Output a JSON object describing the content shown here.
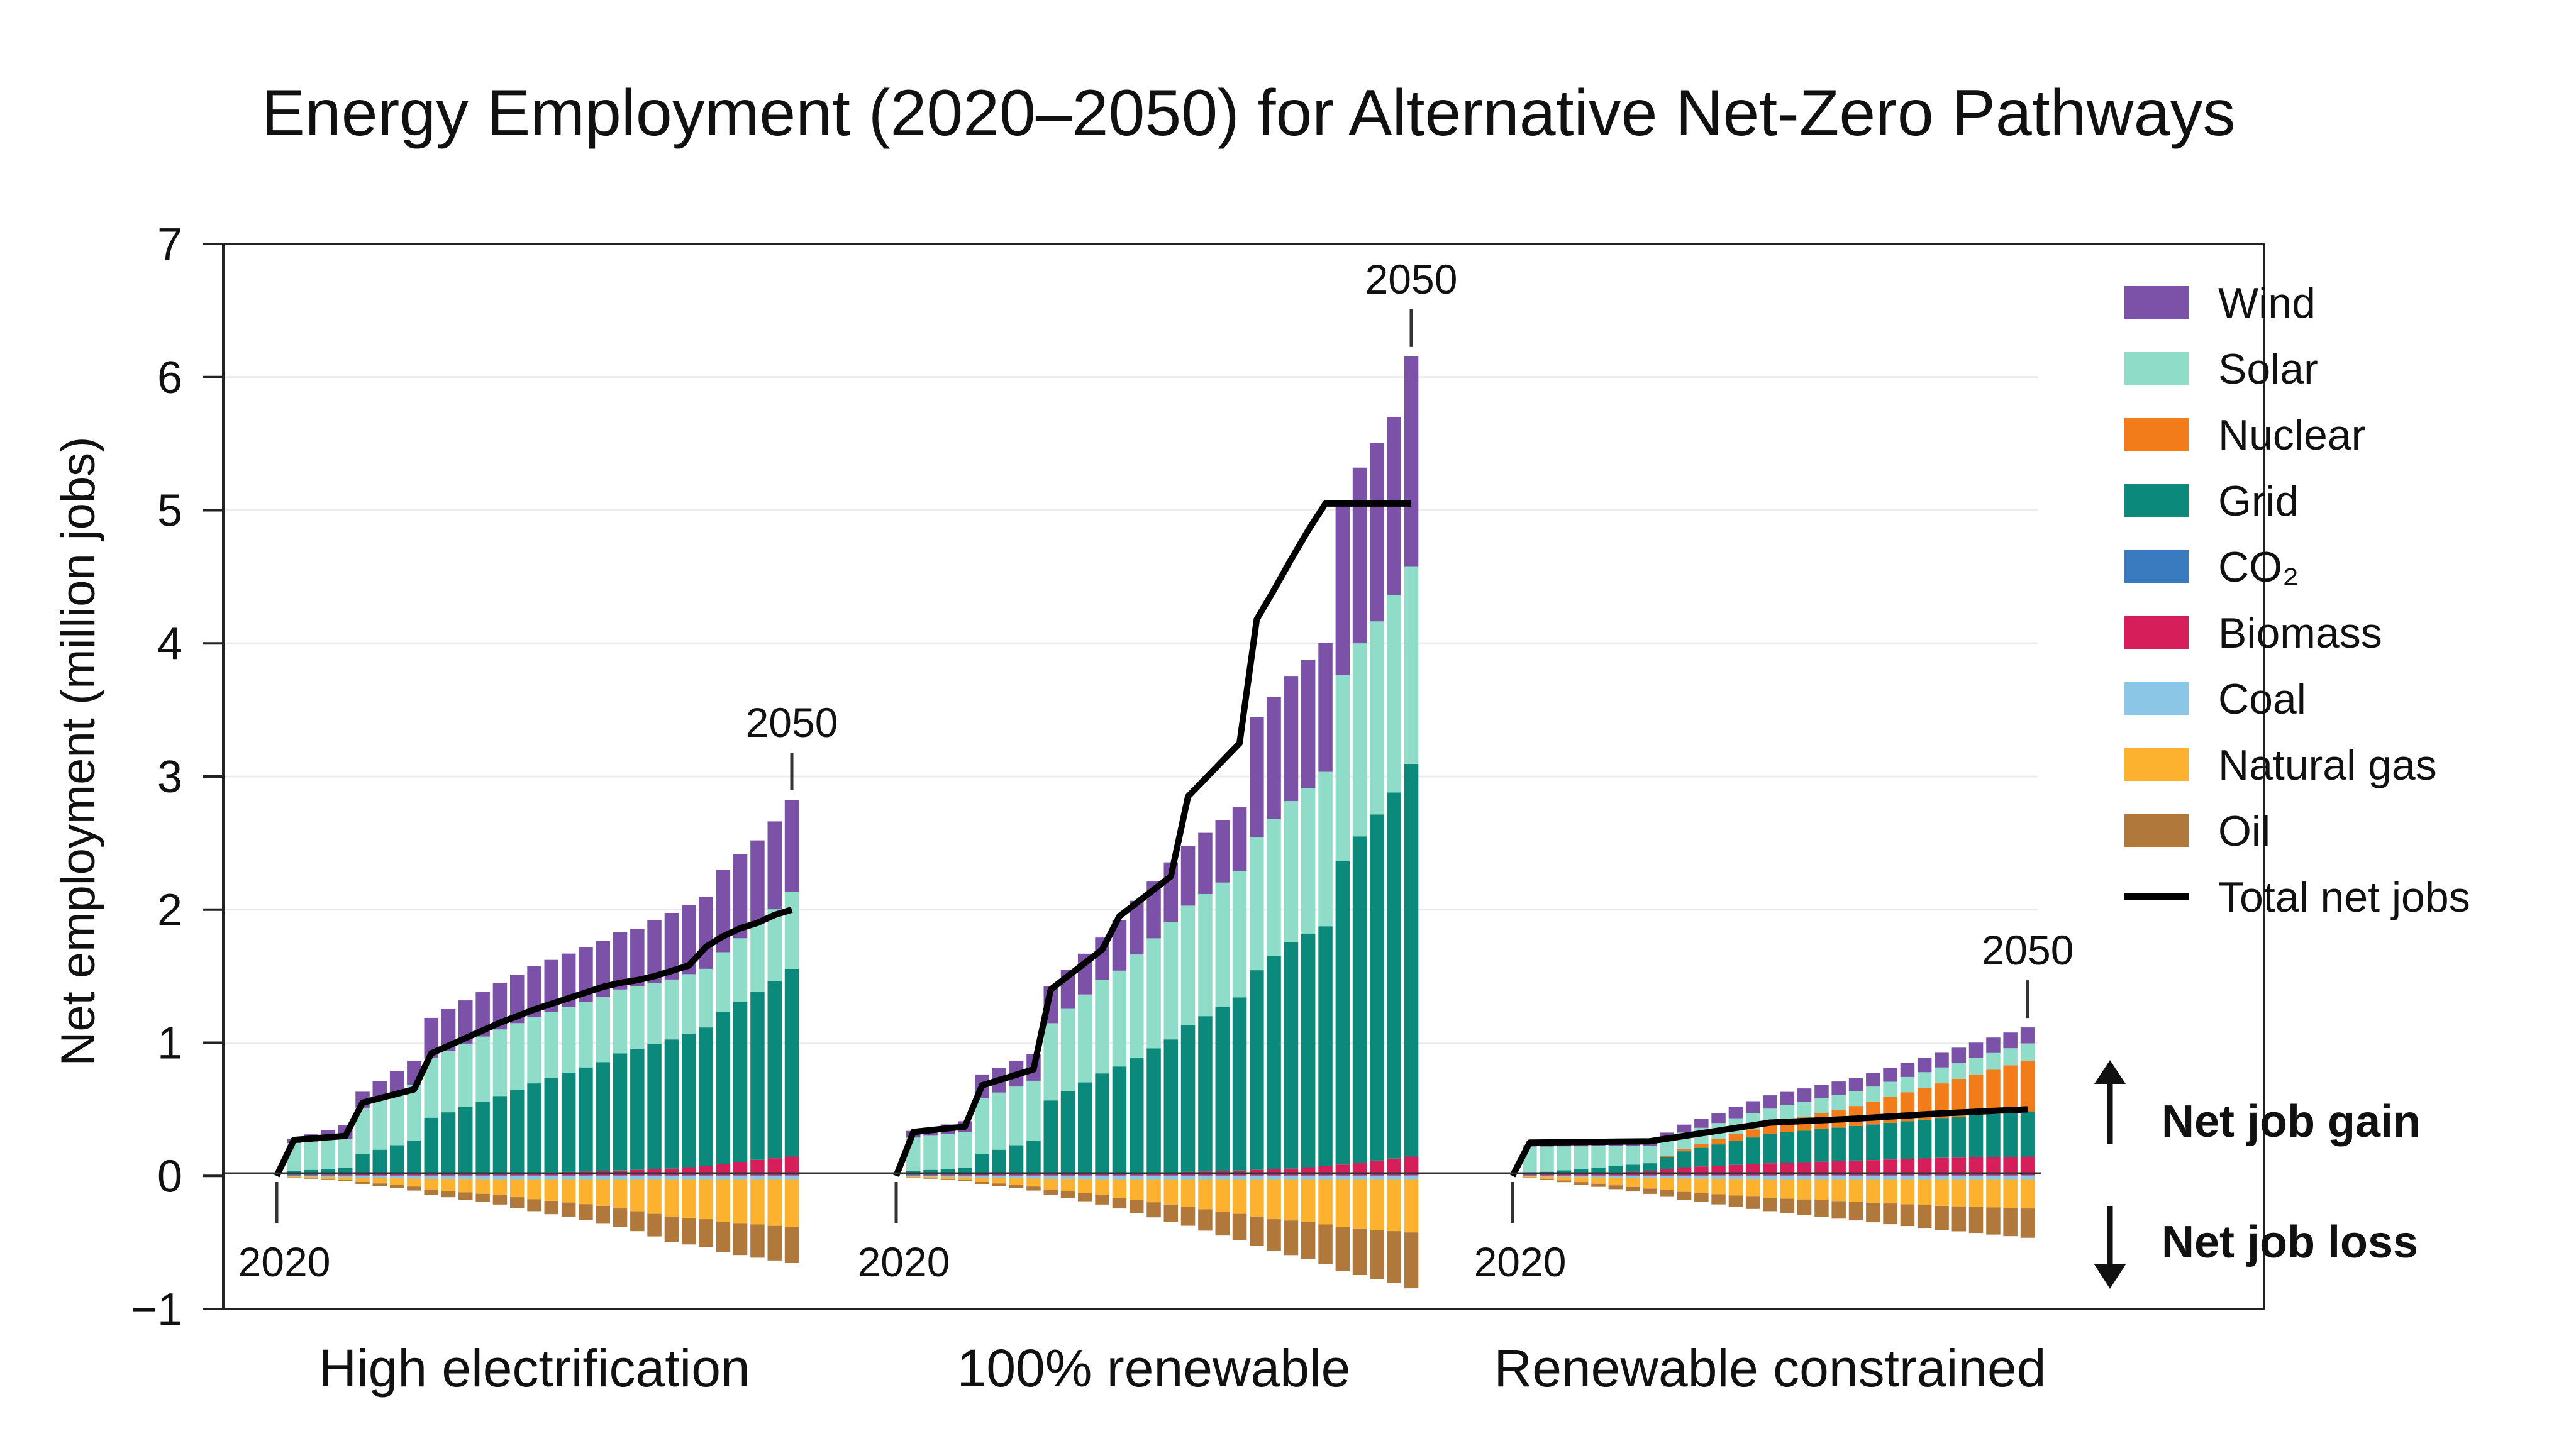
{
  "chart_data": {
    "type": "bar",
    "subtype": "stacked-bar-with-line",
    "title": "Energy Employment (2020–2050) for Alternative Net-Zero Pathways",
    "xlabel": "",
    "ylabel": "Net employment (million jobs)",
    "ylim": [
      -1,
      7
    ],
    "yticks": [
      "−1",
      "0",
      "1",
      "2",
      "3",
      "4",
      "5",
      "6",
      "7"
    ],
    "grid": true,
    "legend_position": "right",
    "series_names": [
      "Wind",
      "Solar",
      "Nuclear",
      "Grid",
      "CO₂",
      "Biomass",
      "Coal",
      "Natural gas",
      "Oil",
      "Total net jobs"
    ],
    "colors": {
      "Wind": "#7b52a8",
      "Solar": "#8fdcc8",
      "Nuclear": "#f27c1a",
      "Grid": "#0b8a7c",
      "CO2": "#3a7bbf",
      "Biomass": "#d61f5a",
      "Coal": "#8cc6e6",
      "Natural gas": "#fdb22f",
      "Oil": "#b0783a",
      "Total net jobs": "#000000"
    },
    "annotations": {
      "start_year": "2020",
      "end_year": "2050",
      "gain": "Net job gain",
      "loss": "Net job loss"
    },
    "x_years": "2020–2050 (31 annual bars per pathway)",
    "groups": [
      {
        "name": "High electrification",
        "anchors": {
          "x": [
            2020,
            2021,
            2024,
            2025,
            2028,
            2029,
            2033,
            2035,
            2039,
            2040,
            2041,
            2042,
            2043,
            2044,
            2045,
            2046,
            2047,
            2048,
            2049,
            2050
          ],
          "Grid": [
            0,
            0.03,
            0.05,
            0.15,
            0.25,
            0.42,
            0.58,
            0.67,
            0.82,
            0.88,
            0.91,
            0.94,
            0.97,
            1.0,
            1.04,
            1.14,
            1.2,
            1.26,
            1.33,
            1.41
          ],
          "Solar": [
            0,
            0.21,
            0.22,
            0.35,
            0.42,
            0.45,
            0.5,
            0.5,
            0.49,
            0.48,
            0.47,
            0.46,
            0.45,
            0.45,
            0.44,
            0.45,
            0.48,
            0.51,
            0.54,
            0.58
          ],
          "Wind": [
            0,
            0.03,
            0.1,
            0.12,
            0.18,
            0.3,
            0.35,
            0.38,
            0.42,
            0.43,
            0.43,
            0.47,
            0.5,
            0.52,
            0.54,
            0.62,
            0.63,
            0.63,
            0.66,
            0.69
          ],
          "Nuclear": [
            0,
            0,
            0,
            0,
            0,
            0,
            0,
            0,
            0,
            0,
            0,
            0,
            0,
            0,
            0,
            0,
            0,
            0,
            0,
            0
          ],
          "CO2": [
            0,
            0.005,
            0.005,
            0.005,
            0.005,
            0.005,
            0.005,
            0.005,
            0.005,
            0.005,
            0.005,
            0.005,
            0.005,
            0.005,
            0.005,
            0.005,
            0.005,
            0.005,
            0.005,
            0.005
          ],
          "Biomass": [
            0,
            0.003,
            0.005,
            0.007,
            0.01,
            0.012,
            0.015,
            0.02,
            0.03,
            0.035,
            0.04,
            0.045,
            0.05,
            0.06,
            0.07,
            0.085,
            0.1,
            0.115,
            0.128,
            0.14
          ],
          "Coal": [
            0,
            -0.005,
            -0.01,
            -0.015,
            -0.02,
            -0.022,
            -0.025,
            -0.025,
            -0.025,
            -0.025,
            -0.025,
            -0.025,
            -0.025,
            -0.025,
            -0.025,
            -0.025,
            -0.025,
            -0.025,
            -0.025,
            -0.025
          ],
          "Natural gas": [
            0,
            -0.005,
            -0.02,
            -0.03,
            -0.06,
            -0.08,
            -0.12,
            -0.15,
            -0.2,
            -0.22,
            -0.24,
            -0.26,
            -0.28,
            -0.29,
            -0.3,
            -0.32,
            -0.33,
            -0.34,
            -0.35,
            -0.36
          ],
          "Oil": [
            0,
            -0.002,
            -0.01,
            -0.015,
            -0.03,
            -0.04,
            -0.07,
            -0.09,
            -0.13,
            -0.14,
            -0.15,
            -0.17,
            -0.19,
            -0.2,
            -0.21,
            -0.23,
            -0.24,
            -0.25,
            -0.26,
            -0.27
          ],
          "Total net jobs": [
            0,
            0.27,
            0.3,
            0.55,
            0.65,
            0.92,
            1.15,
            1.25,
            1.42,
            1.45,
            1.47,
            1.5,
            1.54,
            1.58,
            1.72,
            1.8,
            1.86,
            1.9,
            1.96,
            2.0
          ]
        }
      },
      {
        "name": "100% renewable",
        "anchors": {
          "x": [
            2020,
            2021,
            2024,
            2025,
            2028,
            2029,
            2032,
            2033,
            2036,
            2037,
            2040,
            2041,
            2042,
            2043,
            2044,
            2045,
            2046,
            2047,
            2048,
            2049,
            2050
          ],
          "Grid": [
            0,
            0.03,
            0.05,
            0.15,
            0.25,
            0.55,
            0.75,
            0.8,
            1.0,
            1.1,
            1.3,
            1.5,
            1.6,
            1.7,
            1.75,
            1.8,
            2.28,
            2.45,
            2.6,
            2.75,
            2.95
          ],
          "Solar": [
            0,
            0.25,
            0.27,
            0.42,
            0.45,
            0.58,
            0.7,
            0.72,
            0.88,
            0.9,
            0.95,
            1.0,
            1.03,
            1.06,
            1.1,
            1.16,
            1.4,
            1.45,
            1.45,
            1.48,
            1.48
          ],
          "Wind": [
            0,
            0.05,
            0.08,
            0.18,
            0.2,
            0.28,
            0.32,
            0.38,
            0.45,
            0.45,
            0.48,
            0.9,
            0.92,
            0.94,
            0.96,
            0.97,
            1.3,
            1.32,
            1.34,
            1.34,
            1.58
          ],
          "Nuclear": [
            0,
            0,
            0,
            0,
            0,
            0,
            0,
            0,
            0,
            0,
            0,
            0,
            0,
            0,
            0,
            0,
            0,
            0,
            0,
            0,
            0
          ],
          "CO2": [
            0,
            0.005,
            0.005,
            0.005,
            0.005,
            0.005,
            0.005,
            0.005,
            0.005,
            0.005,
            0.005,
            0.005,
            0.005,
            0.005,
            0.005,
            0.005,
            0.005,
            0.005,
            0.005,
            0.005,
            0.005
          ],
          "Biomass": [
            0,
            0.003,
            0.005,
            0.007,
            0.01,
            0.012,
            0.015,
            0.017,
            0.02,
            0.025,
            0.035,
            0.04,
            0.045,
            0.05,
            0.06,
            0.07,
            0.08,
            0.095,
            0.11,
            0.125,
            0.14
          ],
          "Coal": [
            0,
            -0.005,
            -0.01,
            -0.015,
            -0.02,
            -0.022,
            -0.025,
            -0.025,
            -0.025,
            -0.025,
            -0.025,
            -0.025,
            -0.025,
            -0.025,
            -0.025,
            -0.025,
            -0.025,
            -0.025,
            -0.025,
            -0.025,
            -0.025
          ],
          "Natural gas": [
            0,
            -0.005,
            -0.02,
            -0.03,
            -0.06,
            -0.08,
            -0.12,
            -0.14,
            -0.19,
            -0.21,
            -0.26,
            -0.28,
            -0.3,
            -0.31,
            -0.32,
            -0.34,
            -0.36,
            -0.37,
            -0.38,
            -0.39,
            -0.4
          ],
          "Oil": [
            0,
            -0.002,
            -0.01,
            -0.015,
            -0.03,
            -0.04,
            -0.07,
            -0.08,
            -0.13,
            -0.14,
            -0.2,
            -0.22,
            -0.24,
            -0.26,
            -0.28,
            -0.3,
            -0.33,
            -0.35,
            -0.37,
            -0.39,
            -0.42
          ],
          "Total net jobs": [
            0,
            0.33,
            0.37,
            0.68,
            0.8,
            1.4,
            1.7,
            1.95,
            2.25,
            2.85,
            3.25,
            4.18,
            4.4,
            4.63,
            4.85,
            5.05,
            5.05,
            5.05,
            5.05,
            5.05,
            5.05
          ]
        }
      },
      {
        "name": "Renewable constrained",
        "anchors": {
          "x": [
            2020,
            2021,
            2028,
            2030,
            2035,
            2040,
            2045,
            2050
          ],
          "Grid": [
            0,
            0.01,
            0.06,
            0.12,
            0.22,
            0.26,
            0.3,
            0.34
          ],
          "Solar": [
            0,
            0.2,
            0.13,
            0.12,
            0.12,
            0.11,
            0.12,
            0.13
          ],
          "Wind": [
            0,
            0.01,
            0.04,
            0.06,
            0.1,
            0.1,
            0.11,
            0.12
          ],
          "Nuclear": [
            0,
            0,
            0,
            0.02,
            0.07,
            0.15,
            0.26,
            0.38
          ],
          "CO2": [
            0,
            0.005,
            0.005,
            0.005,
            0.005,
            0.005,
            0.005,
            0.005
          ],
          "Biomass": [
            0,
            0.005,
            0.03,
            0.06,
            0.09,
            0.11,
            0.13,
            0.14
          ],
          "Coal": [
            0,
            -0.005,
            -0.015,
            -0.02,
            -0.025,
            -0.025,
            -0.025,
            -0.025
          ],
          "Natural gas": [
            0,
            -0.005,
            -0.08,
            -0.1,
            -0.14,
            -0.17,
            -0.2,
            -0.22
          ],
          "Oil": [
            0,
            -0.002,
            -0.04,
            -0.06,
            -0.1,
            -0.14,
            -0.18,
            -0.22
          ],
          "Total net jobs": [
            0,
            0.25,
            0.26,
            0.3,
            0.4,
            0.43,
            0.47,
            0.5
          ]
        }
      }
    ]
  }
}
